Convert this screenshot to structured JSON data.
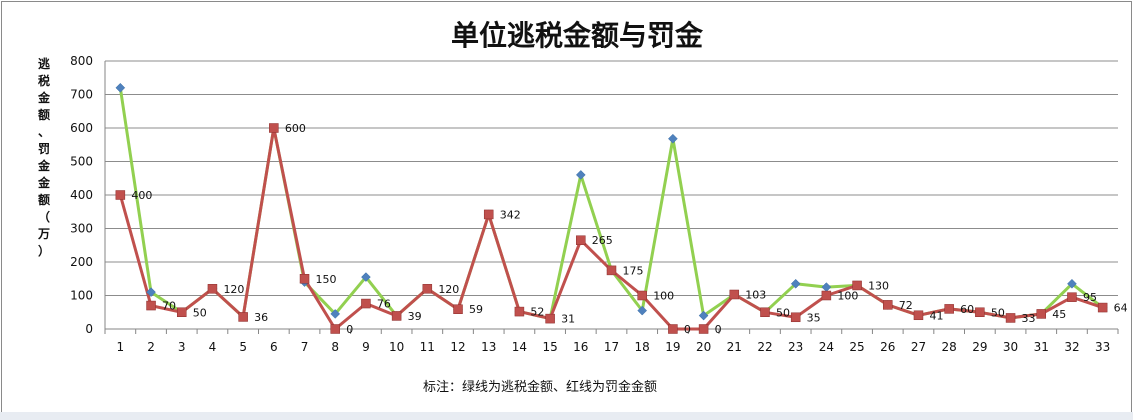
{
  "chart_data": {
    "type": "line",
    "title": "单位逃税金额与罚金",
    "ylabel": "逃税金额、罚金金额（万）",
    "xlabel": "",
    "note": "标注：绿线为逃税金额、红线为罚金金额",
    "ylim": [
      0,
      800
    ],
    "yticks": [
      0,
      100,
      200,
      300,
      400,
      500,
      600,
      700,
      800
    ],
    "grid": true,
    "legend": "none",
    "categories": [
      "1",
      "2",
      "3",
      "4",
      "5",
      "6",
      "7",
      "8",
      "9",
      "10",
      "11",
      "12",
      "13",
      "14",
      "15",
      "16",
      "17",
      "18",
      "19",
      "20",
      "21",
      "22",
      "23",
      "24",
      "25",
      "26",
      "27",
      "28",
      "29",
      "30",
      "31",
      "32",
      "33"
    ],
    "series": [
      {
        "line_color": "#92d050",
        "marker_color": "#4f81bd",
        "marker": "diamond",
        "values": [
          720,
          110,
          50,
          120,
          36,
          600,
          140,
          45,
          155,
          39,
          120,
          59,
          342,
          52,
          31,
          460,
          175,
          55,
          568,
          40,
          103,
          50,
          135,
          125,
          130,
          72,
          41,
          60,
          50,
          33,
          45,
          135,
          64
        ]
      },
      {
        "line_color": "#c0504d",
        "marker_color": "#c0504d",
        "marker": "square",
        "values": [
          400,
          70,
          50,
          120,
          36,
          600,
          150,
          0,
          76,
          39,
          120,
          59,
          342,
          52,
          31,
          265,
          175,
          100,
          0,
          0,
          103,
          50,
          35,
          100,
          130,
          72,
          41,
          60,
          50,
          33,
          45,
          95,
          64
        ],
        "data_labels": [
          "400",
          "70",
          "50",
          "120",
          "36",
          "600",
          "150",
          "0",
          "76",
          "39",
          "120",
          "59",
          "342",
          "52",
          "31",
          "265",
          "175",
          "100",
          "0",
          "0",
          "103",
          "50",
          "35",
          "100",
          "130",
          "72",
          "41",
          "60",
          "50",
          "33",
          "45",
          "95",
          "64"
        ]
      }
    ]
  }
}
